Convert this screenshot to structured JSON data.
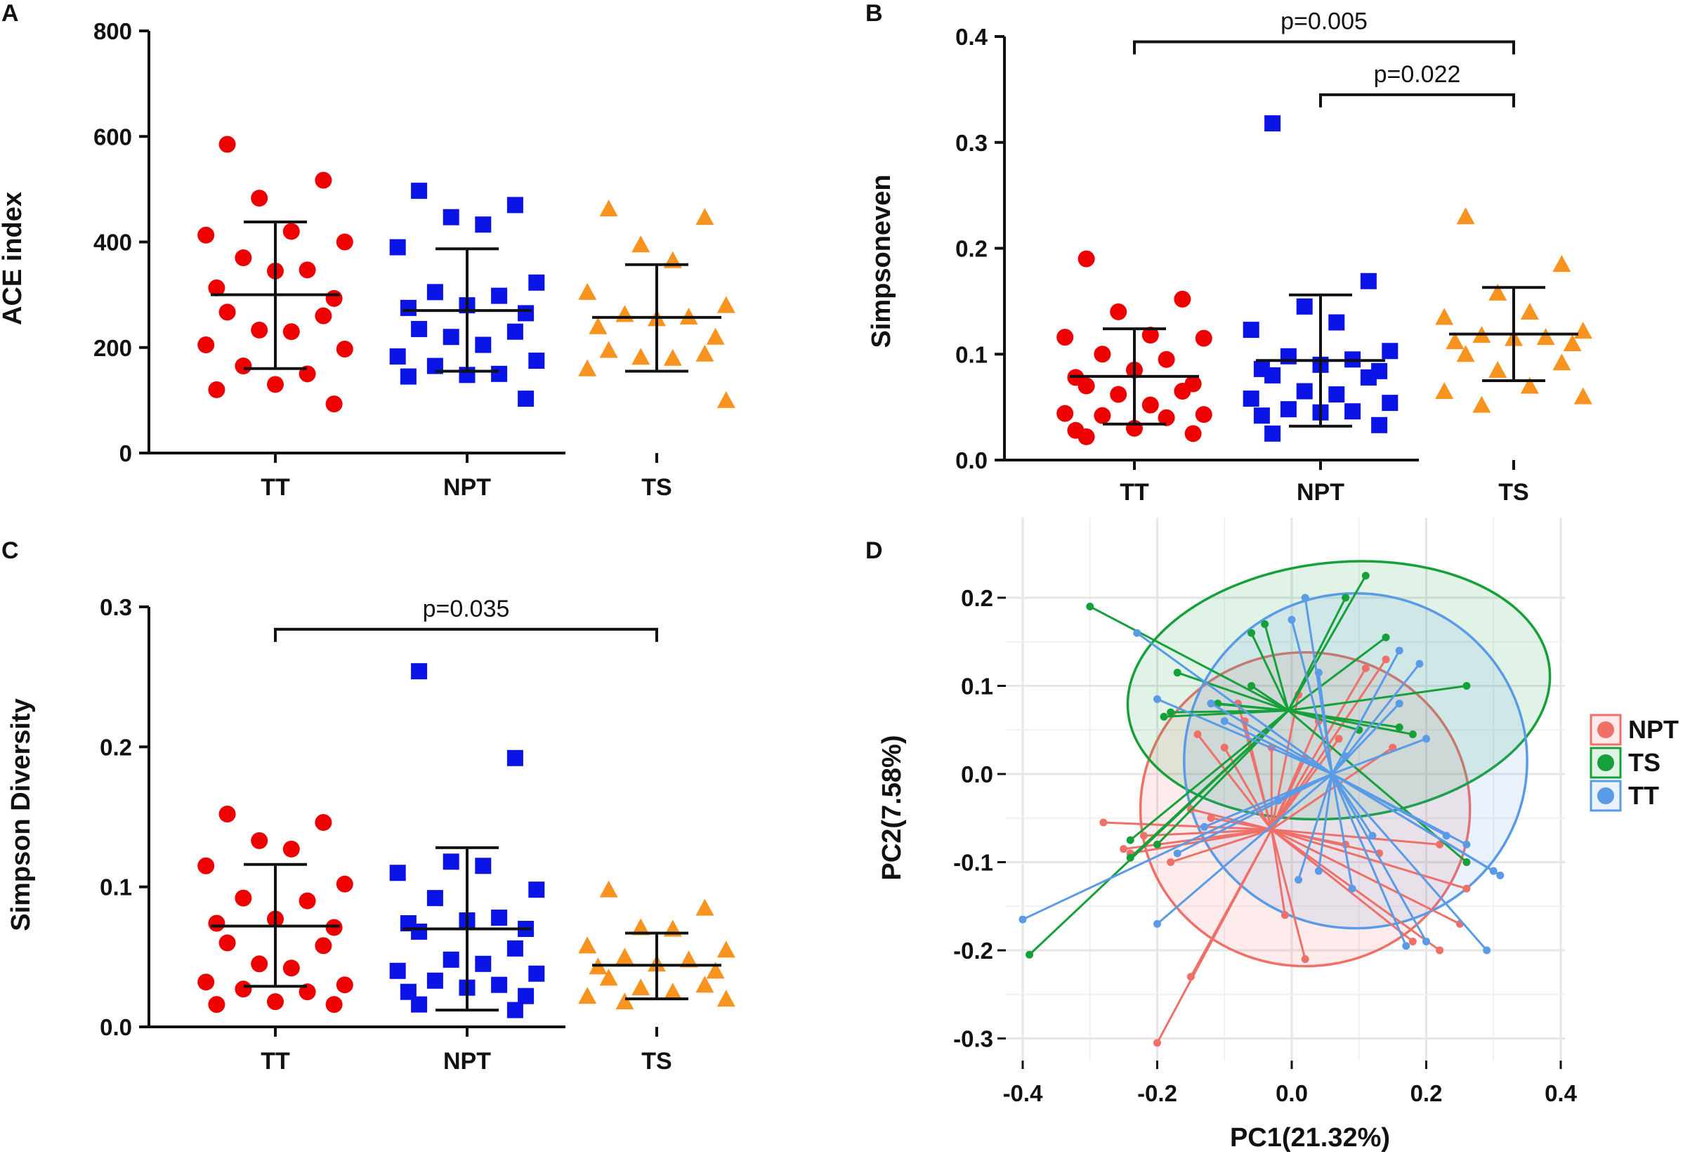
{
  "colors": {
    "TT": "#ee0000",
    "NPT": "#0a14e6",
    "TS": "#f7931e",
    "pcoa_NPT": "#ef7068",
    "pcoa_TS": "#16a03a",
    "pcoa_TT": "#5a9be8",
    "axis": "#111111"
  },
  "chart_data": [
    {
      "panel": "A",
      "type": "scatter",
      "ylabel": "ACE  index",
      "categories": [
        "TT",
        "NPT",
        "TS"
      ],
      "ylim": [
        0,
        800
      ],
      "yticks": [
        "0",
        "200",
        "400",
        "600",
        "800"
      ],
      "ytick_values": [
        0,
        200,
        400,
        600,
        800
      ],
      "series": [
        {
          "name": "TT",
          "marker": "circle",
          "color": "#ee0000",
          "mean": 300,
          "sd_low": 160,
          "sd_high": 438,
          "points": [
            585,
            517,
            483,
            420,
            413,
            400,
            370,
            347,
            345,
            313,
            293,
            267,
            260,
            233,
            230,
            205,
            197,
            165,
            150,
            130,
            120,
            93
          ]
        },
        {
          "name": "NPT",
          "marker": "square",
          "color": "#0a14e6",
          "mean": 270,
          "sd_low": 155,
          "sd_high": 387,
          "points": [
            497,
            470,
            447,
            433,
            390,
            323,
            305,
            298,
            280,
            275,
            265,
            235,
            230,
            220,
            205,
            183,
            175,
            165,
            150,
            148,
            145,
            103
          ]
        },
        {
          "name": "TS",
          "marker": "triangle",
          "color": "#f7931e",
          "mean": 257,
          "sd_low": 155,
          "sd_high": 357,
          "points": [
            463,
            447,
            395,
            365,
            305,
            280,
            263,
            258,
            255,
            240,
            220,
            195,
            188,
            182,
            180,
            160,
            100
          ]
        }
      ]
    },
    {
      "panel": "B",
      "type": "scatter",
      "ylabel": "Simpsoneven",
      "categories": [
        "TT",
        "NPT",
        "TS"
      ],
      "ylim": [
        0,
        0.4
      ],
      "yticks": [
        "0.0",
        "0.1",
        "0.2",
        "0.3",
        "0.4"
      ],
      "ytick_values": [
        0,
        0.1,
        0.2,
        0.3,
        0.4
      ],
      "series": [
        {
          "name": "TT",
          "marker": "circle",
          "color": "#ee0000",
          "mean": 0.079,
          "sd_low": 0.034,
          "sd_high": 0.124,
          "points": [
            0.19,
            0.152,
            0.14,
            0.118,
            0.116,
            0.115,
            0.1,
            0.095,
            0.085,
            0.078,
            0.072,
            0.07,
            0.065,
            0.062,
            0.052,
            0.044,
            0.043,
            0.042,
            0.04,
            0.03,
            0.028,
            0.025,
            0.022
          ]
        },
        {
          "name": "NPT",
          "marker": "square",
          "color": "#0a14e6",
          "mean": 0.094,
          "sd_low": 0.032,
          "sd_high": 0.156,
          "points": [
            0.318,
            0.169,
            0.145,
            0.13,
            0.123,
            0.103,
            0.098,
            0.095,
            0.09,
            0.086,
            0.084,
            0.08,
            0.078,
            0.065,
            0.062,
            0.058,
            0.054,
            0.048,
            0.046,
            0.045,
            0.042,
            0.033,
            0.025
          ]
        },
        {
          "name": "TS",
          "marker": "triangle",
          "color": "#f7931e",
          "mean": 0.119,
          "sd_low": 0.075,
          "sd_high": 0.163,
          "points": [
            0.23,
            0.185,
            0.158,
            0.14,
            0.135,
            0.122,
            0.118,
            0.116,
            0.115,
            0.112,
            0.11,
            0.1,
            0.092,
            0.085,
            0.07,
            0.065,
            0.06,
            0.052
          ]
        }
      ],
      "comparisons": [
        {
          "from": "TT",
          "to": "TS",
          "label": "p=0.005",
          "value": 0.395
        },
        {
          "from": "NPT",
          "to": "TS",
          "label": "p=0.022",
          "value": 0.345
        }
      ]
    },
    {
      "panel": "C",
      "type": "scatter",
      "ylabel": "Simpson   Diversity",
      "categories": [
        "TT",
        "NPT",
        "TS"
      ],
      "ylim": [
        0,
        0.3
      ],
      "yticks": [
        "0.0",
        "0.1",
        "0.2",
        "0.3"
      ],
      "ytick_values": [
        0,
        0.1,
        0.2,
        0.3
      ],
      "series": [
        {
          "name": "TT",
          "marker": "circle",
          "color": "#ee0000",
          "mean": 0.072,
          "sd_low": 0.029,
          "sd_high": 0.116,
          "points": [
            0.152,
            0.146,
            0.133,
            0.127,
            0.115,
            0.102,
            0.092,
            0.09,
            0.077,
            0.074,
            0.071,
            0.06,
            0.058,
            0.045,
            0.042,
            0.032,
            0.03,
            0.027,
            0.025,
            0.018,
            0.016,
            0.016
          ]
        },
        {
          "name": "NPT",
          "marker": "square",
          "color": "#0a14e6",
          "mean": 0.07,
          "sd_low": 0.012,
          "sd_high": 0.128,
          "points": [
            0.254,
            0.192,
            0.118,
            0.115,
            0.11,
            0.098,
            0.092,
            0.078,
            0.076,
            0.074,
            0.07,
            0.068,
            0.056,
            0.048,
            0.045,
            0.04,
            0.038,
            0.033,
            0.03,
            0.028,
            0.025,
            0.022,
            0.016,
            0.012
          ]
        },
        {
          "name": "TS",
          "marker": "triangle",
          "color": "#f7931e",
          "mean": 0.044,
          "sd_low": 0.02,
          "sd_high": 0.067,
          "points": [
            0.098,
            0.085,
            0.071,
            0.07,
            0.058,
            0.055,
            0.05,
            0.048,
            0.045,
            0.043,
            0.04,
            0.035,
            0.03,
            0.028,
            0.025,
            0.022,
            0.02,
            0.018
          ]
        }
      ],
      "comparisons": [
        {
          "from": "TT",
          "to": "TS",
          "label": "p=0.035",
          "value": 0.284
        }
      ]
    },
    {
      "panel": "D",
      "type": "scatter",
      "subtype": "pcoa",
      "xlabel": "PC1(21.32%)",
      "ylabel": "PC2(7.58%)",
      "xlim": [
        -0.43,
        0.42
      ],
      "ylim": [
        -0.325,
        0.235
      ],
      "xticks": [
        "-0.4",
        "-0.2",
        "0.0",
        "0.2",
        "0.4"
      ],
      "xtick_values": [
        -0.4,
        -0.2,
        0,
        0.2,
        0.4
      ],
      "yticks": [
        "-0.3",
        "-0.2",
        "-0.1",
        "0.0",
        "0.1",
        "0.2"
      ],
      "ytick_values": [
        -0.3,
        -0.2,
        -0.1,
        0,
        0.1,
        0.2
      ],
      "legend": [
        "NPT",
        "TS",
        "TT"
      ],
      "groups": [
        {
          "name": "NPT",
          "color": "#ef7068",
          "centroid": [
            -0.03,
            -0.063
          ],
          "ellipse": {
            "cx": 0.02,
            "cy": -0.04,
            "rx": 0.245,
            "ry": 0.178,
            "angle_deg": 0
          },
          "points": [
            [
              -0.2,
              -0.305
            ],
            [
              -0.15,
              -0.23
            ],
            [
              -0.24,
              -0.09
            ],
            [
              -0.28,
              -0.055
            ],
            [
              -0.25,
              -0.085
            ],
            [
              -0.22,
              -0.07
            ],
            [
              -0.18,
              -0.1
            ],
            [
              -0.15,
              -0.04
            ],
            [
              -0.12,
              -0.05
            ],
            [
              -0.1,
              0.03
            ],
            [
              -0.14,
              0.045
            ],
            [
              -0.08,
              0.08
            ],
            [
              -0.07,
              0.06
            ],
            [
              0.01,
              0.09
            ],
            [
              0.04,
              0.06
            ],
            [
              -0.03,
              0.03
            ],
            [
              0.02,
              0.018
            ],
            [
              0.11,
              0.12
            ],
            [
              0.14,
              0.13
            ],
            [
              0.07,
              0.04
            ],
            [
              0.15,
              0.03
            ],
            [
              0.22,
              -0.08
            ],
            [
              0.26,
              -0.13
            ],
            [
              0.25,
              -0.17
            ],
            [
              0.22,
              -0.2
            ],
            [
              0.18,
              -0.19
            ],
            [
              0.02,
              -0.21
            ],
            [
              -0.01,
              -0.16
            ],
            [
              0.08,
              -0.08
            ],
            [
              0.13,
              -0.09
            ]
          ]
        },
        {
          "name": "TS",
          "color": "#16a03a",
          "centroid": [
            -0.005,
            0.072
          ],
          "ellipse": {
            "cx": 0.07,
            "cy": 0.095,
            "rx": 0.315,
            "ry": 0.145,
            "angle_deg": -6
          },
          "points": [
            [
              -0.3,
              0.19
            ],
            [
              -0.39,
              -0.205
            ],
            [
              -0.24,
              -0.095
            ],
            [
              -0.24,
              -0.075
            ],
            [
              -0.2,
              -0.08
            ],
            [
              -0.19,
              0.065
            ],
            [
              -0.18,
              0.07
            ],
            [
              -0.17,
              0.115
            ],
            [
              -0.12,
              0.08
            ],
            [
              -0.11,
              0.08
            ],
            [
              -0.06,
              0.1
            ],
            [
              -0.04,
              0.17
            ],
            [
              -0.06,
              0.16
            ],
            [
              0.08,
              0.2
            ],
            [
              0.11,
              0.225
            ],
            [
              0.14,
              0.155
            ],
            [
              0.26,
              0.1
            ],
            [
              0.16,
              0.053
            ],
            [
              0.18,
              0.045
            ],
            [
              0.1,
              0.05
            ],
            [
              0.26,
              -0.1
            ]
          ]
        },
        {
          "name": "TT",
          "color": "#5a9be8",
          "centroid": [
            0.06,
            0.0
          ],
          "ellipse": {
            "cx": 0.095,
            "cy": 0.015,
            "rx": 0.255,
            "ry": 0.19,
            "angle_deg": 0
          },
          "points": [
            [
              -0.4,
              -0.165
            ],
            [
              -0.2,
              -0.17
            ],
            [
              -0.17,
              -0.09
            ],
            [
              -0.13,
              -0.06
            ],
            [
              -0.12,
              0.08
            ],
            [
              -0.1,
              0.06
            ],
            [
              -0.2,
              0.085
            ],
            [
              -0.23,
              0.16
            ],
            [
              0.0,
              0.175
            ],
            [
              0.02,
              0.2
            ],
            [
              0.04,
              0.115
            ],
            [
              0.08,
              0.02
            ],
            [
              0.16,
              0.14
            ],
            [
              0.19,
              0.125
            ],
            [
              0.16,
              0.08
            ],
            [
              0.2,
              0.04
            ],
            [
              0.23,
              -0.07
            ],
            [
              0.26,
              -0.08
            ],
            [
              0.3,
              -0.11
            ],
            [
              0.31,
              -0.115
            ],
            [
              0.29,
              -0.2
            ],
            [
              0.2,
              -0.19
            ],
            [
              0.17,
              -0.195
            ],
            [
              0.09,
              -0.13
            ],
            [
              0.04,
              -0.11
            ],
            [
              0.12,
              -0.07
            ],
            [
              -0.02,
              -0.03
            ],
            [
              0.01,
              -0.12
            ]
          ]
        }
      ]
    }
  ]
}
